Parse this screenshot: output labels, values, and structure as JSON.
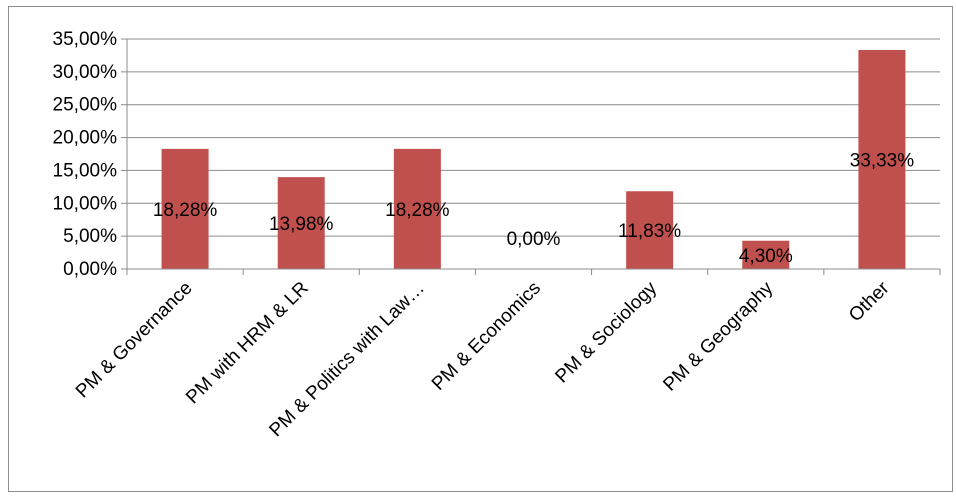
{
  "chart_data": {
    "type": "bar",
    "title": "",
    "xlabel": "",
    "ylabel": "",
    "categories": [
      "PM & Governance",
      "PM with HRM & LR",
      "PM & Politics with Law…",
      "PM & Economics",
      "PM & Sociology",
      "PM & Geography",
      "Other"
    ],
    "values": [
      18.28,
      13.98,
      18.28,
      0.0,
      11.83,
      4.3,
      33.33
    ],
    "data_labels": [
      "18,28%",
      "13,98%",
      "18,28%",
      "0,00%",
      "11,83%",
      "4,30%",
      "33,33%"
    ],
    "y_ticks": [
      0,
      5,
      10,
      15,
      20,
      25,
      30,
      35
    ],
    "y_tick_labels": [
      "0,00%",
      "5,00%",
      "10,00%",
      "15,00%",
      "20,00%",
      "25,00%",
      "30,00%",
      "35,00%"
    ],
    "ylim": [
      0,
      35
    ],
    "grid": true,
    "legend": "none",
    "bar_color": "#c0504d"
  }
}
